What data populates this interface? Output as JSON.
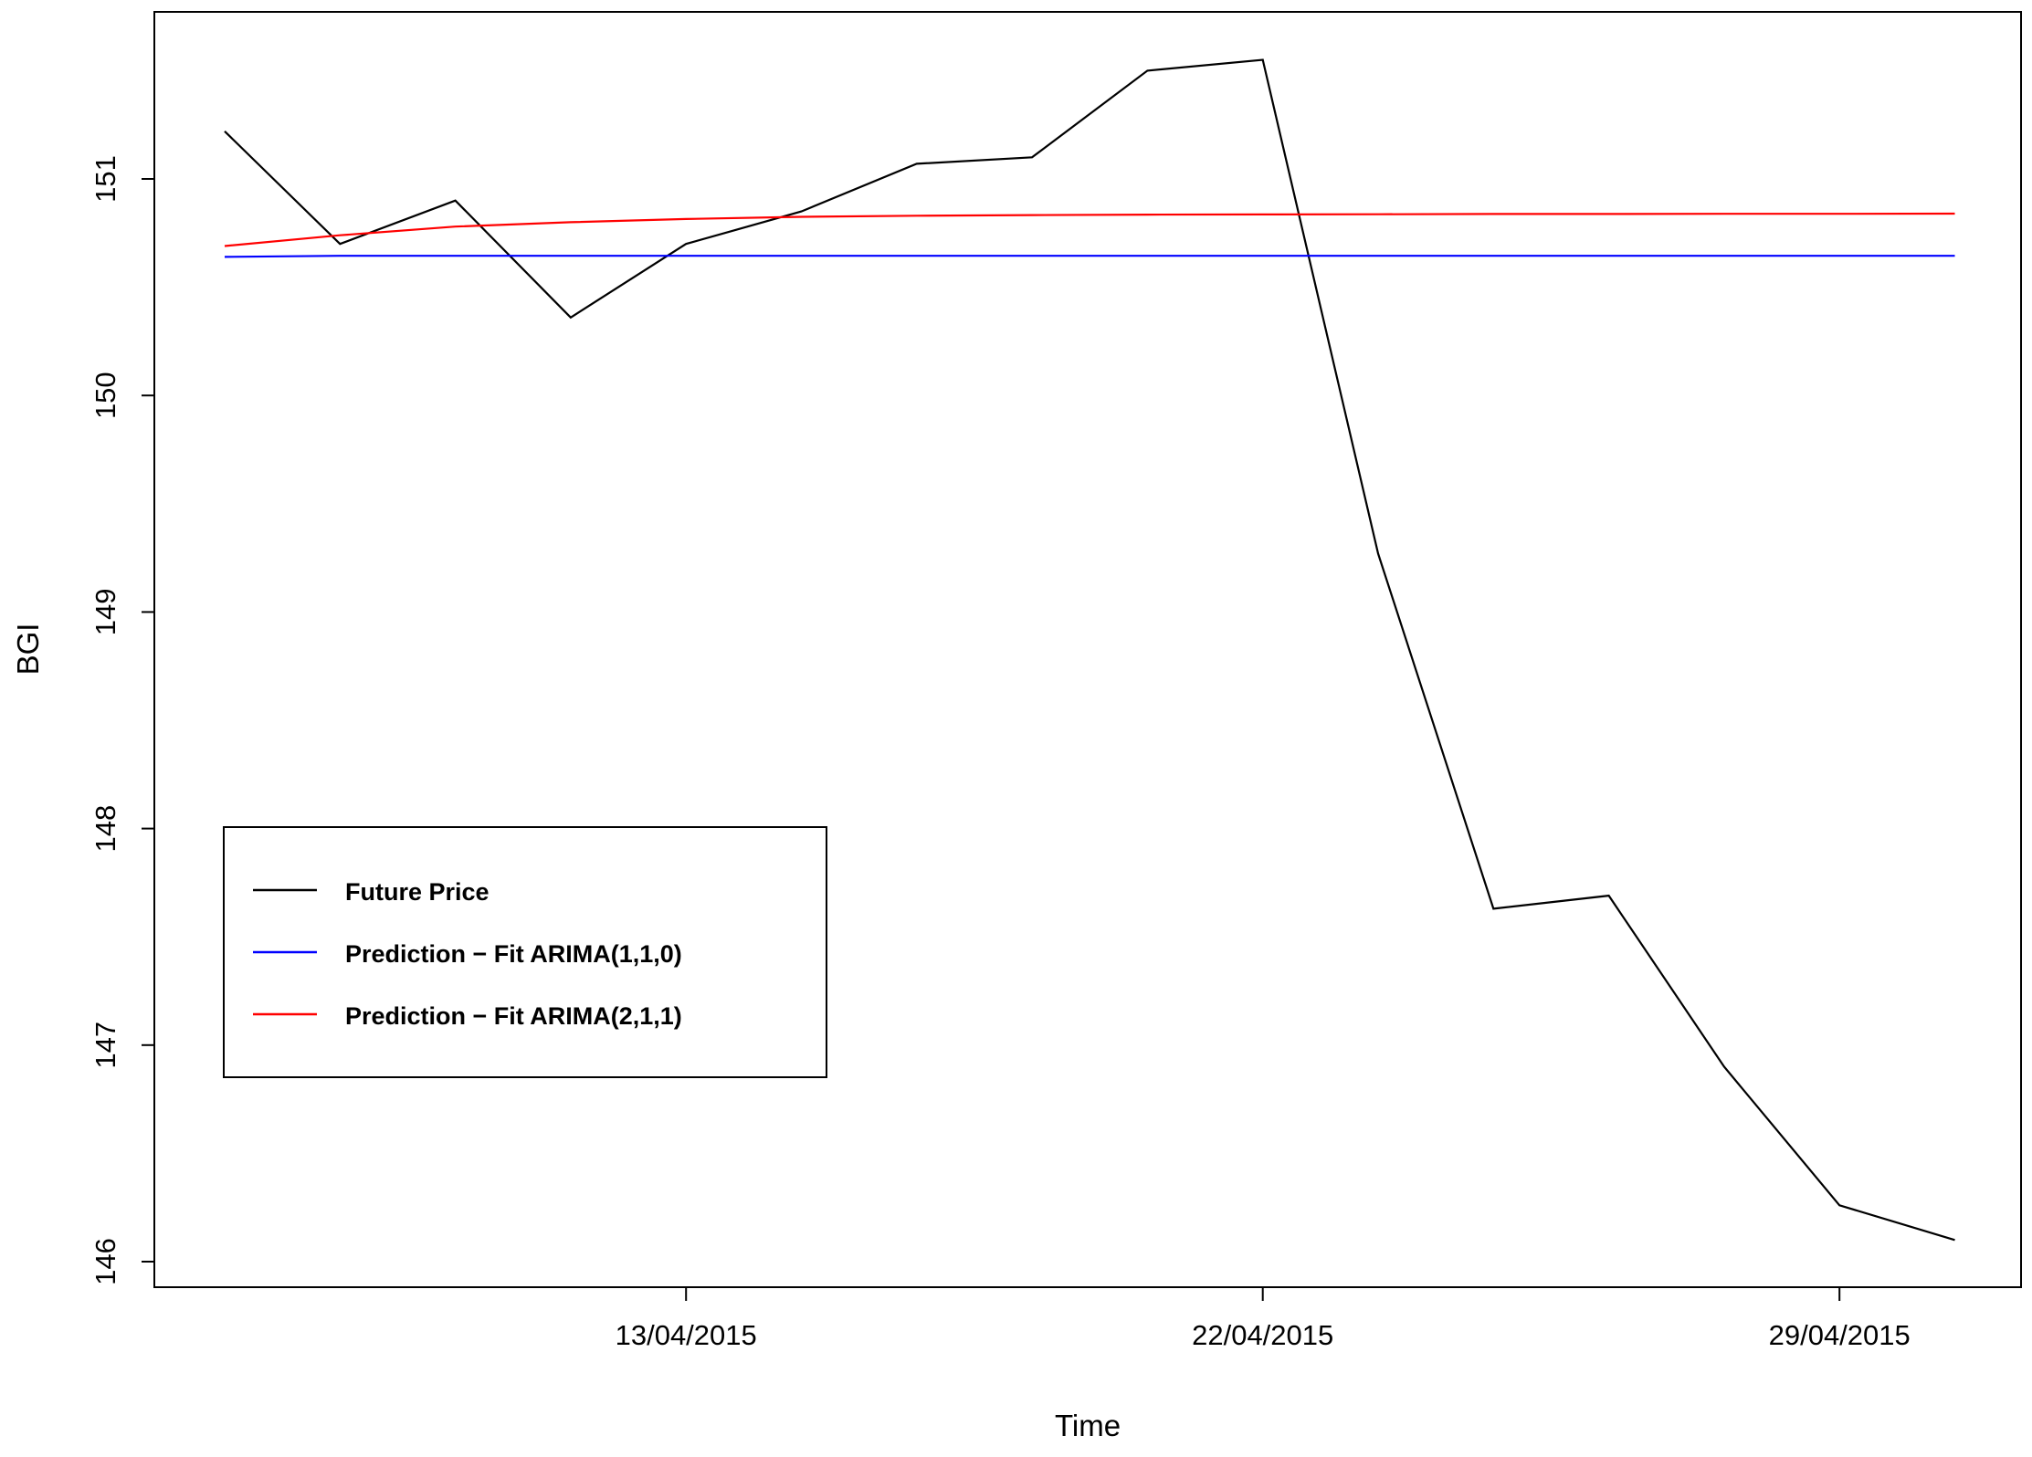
{
  "chart_data": {
    "type": "line",
    "xlabel": "Time",
    "ylabel": "BGI",
    "x_tick_labels": [
      "13/04/2015",
      "22/04/2015",
      "29/04/2015"
    ],
    "y_tick_labels": [
      "146",
      "147",
      "148",
      "149",
      "150",
      "151"
    ],
    "ylim": [
      145.9,
      151.8
    ],
    "grid": false,
    "legend_position": "bottom-left",
    "series": [
      {
        "name": "Future Price",
        "color": "#000000",
        "values": [
          151.22,
          150.7,
          150.9,
          150.36,
          150.7,
          150.85,
          151.07,
          151.1,
          151.5,
          151.55,
          149.27,
          147.63,
          147.69,
          146.9,
          146.26,
          146.1
        ]
      },
      {
        "name": "Prediction − Fit ARIMA(1,1,0)",
        "color": "#0000ff",
        "values": [
          150.64,
          150.645,
          150.645,
          150.645,
          150.645,
          150.645,
          150.645,
          150.645,
          150.645,
          150.645,
          150.645,
          150.645,
          150.645,
          150.645,
          150.645,
          150.645
        ]
      },
      {
        "name": "Prediction − Fit ARIMA(2,1,1)",
        "color": "#ff0000",
        "values": [
          150.69,
          150.74,
          150.78,
          150.8,
          150.815,
          150.825,
          150.83,
          150.833,
          150.835,
          150.836,
          150.837,
          150.838,
          150.838,
          150.839,
          150.839,
          150.84
        ]
      }
    ]
  }
}
